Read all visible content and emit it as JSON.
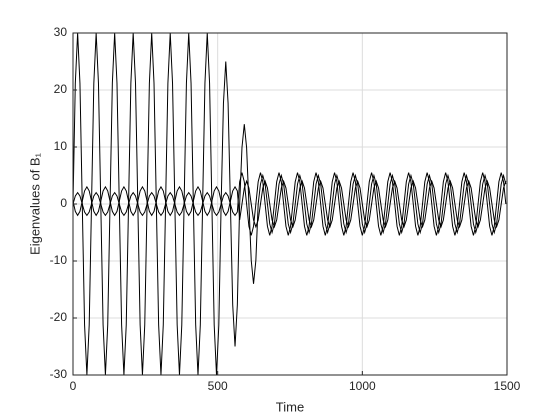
{
  "chart_data": {
    "type": "line",
    "x_label": "Time",
    "y_label": "Eigenvalues of B₁",
    "x": [
      0,
      8,
      16,
      24,
      32,
      40,
      48,
      56,
      64,
      72,
      80,
      88,
      96,
      104,
      112,
      120,
      128,
      136,
      144,
      152,
      160,
      168,
      176,
      184,
      192,
      200,
      208,
      216,
      224,
      232,
      240,
      248,
      256,
      264,
      272,
      280,
      288,
      296,
      304,
      312,
      320,
      328,
      336,
      344,
      352,
      360,
      368,
      376,
      384,
      392,
      400,
      408,
      416,
      424,
      432,
      440,
      448,
      456,
      464,
      472,
      480,
      488,
      496,
      504,
      512,
      520,
      528,
      536,
      544,
      552,
      560,
      568,
      576,
      584,
      592,
      600,
      608,
      616,
      624,
      632,
      640,
      648,
      656,
      664,
      672,
      680,
      688,
      696,
      704,
      712,
      720,
      728,
      736,
      744,
      752,
      760,
      768,
      776,
      784,
      792,
      800,
      808,
      816,
      824,
      832,
      840,
      848,
      856,
      864,
      872,
      880,
      888,
      896,
      904,
      912,
      920,
      928,
      936,
      944,
      952,
      960,
      968,
      976,
      984,
      992,
      1000,
      1008,
      1016,
      1024,
      1032,
      1040,
      1048,
      1056,
      1064,
      1072,
      1080,
      1088,
      1096,
      1104,
      1112,
      1120,
      1128,
      1136,
      1144,
      1152,
      1160,
      1168,
      1176,
      1184,
      1192,
      1200,
      1208,
      1216,
      1224,
      1232,
      1240,
      1248,
      1256,
      1264,
      1272,
      1280,
      1288,
      1296,
      1304,
      1312,
      1320,
      1328,
      1336,
      1344,
      1352,
      1360,
      1368,
      1376,
      1384,
      1392,
      1400,
      1408,
      1416,
      1424,
      1432,
      1440,
      1448,
      1456,
      1464,
      1472,
      1480,
      1488,
      1496
    ],
    "series": [
      {
        "color": "#000000",
        "values": [
          0,
          21.2,
          30,
          21.2,
          0,
          -21.2,
          -30,
          -21.2,
          0,
          21.2,
          30,
          21.2,
          0,
          -21.2,
          -30,
          -21.2,
          0,
          21.2,
          30,
          21.2,
          0,
          -21.2,
          -30,
          -21.2,
          0,
          21.2,
          30,
          21.2,
          0,
          -21.2,
          -30,
          -21.2,
          0,
          21.2,
          30,
          21.2,
          0,
          -21.2,
          -30,
          -21.2,
          0,
          21.2,
          30,
          21.2,
          0,
          -21.2,
          -30,
          -21.2,
          0,
          21.2,
          30,
          21.2,
          0,
          -21.2,
          -30,
          -21.2,
          0,
          21.2,
          30,
          21.2,
          0,
          -21.2,
          -30,
          -21.2,
          0,
          17.7,
          25,
          17.7,
          0,
          -17.7,
          -25,
          -17.7,
          0,
          9.9,
          14,
          9.9,
          0,
          -9.9,
          -14,
          -9.9,
          0,
          3.5,
          5,
          3.5,
          0,
          -3.5,
          -5,
          -3.5,
          0,
          3.5,
          5,
          3.5,
          0,
          -3.5,
          -5,
          -3.5,
          0,
          3.5,
          5,
          3.5,
          0,
          -3.5,
          -5,
          -3.5,
          0,
          3.5,
          5,
          3.5,
          0,
          -3.5,
          -5,
          -3.5,
          0,
          3.5,
          5,
          3.5,
          0,
          -3.5,
          -5,
          -3.5,
          0,
          3.5,
          5,
          3.5,
          0,
          -3.5,
          -5,
          -3.5,
          0,
          3.5,
          5,
          3.5,
          0,
          -3.5,
          -5,
          -3.5,
          0,
          3.5,
          5,
          3.5,
          0,
          -3.5,
          -5,
          -3.5,
          0,
          3.5,
          5,
          3.5,
          0,
          -3.5,
          -5,
          -3.5,
          0,
          3.5,
          5,
          3.5,
          0,
          -3.5,
          -5,
          -3.5,
          0,
          3.5,
          5,
          3.5,
          0,
          -3.5,
          -5,
          -3.5,
          0,
          3.5,
          5,
          3.5,
          0,
          -3.5,
          -5,
          -3.5,
          0,
          3.5,
          5,
          3.5,
          0,
          -3.5,
          -5,
          -3.5,
          0,
          3.5,
          5,
          3.5
        ]
      },
      {
        "color": "#000000",
        "values": [
          0,
          1.4,
          2,
          1.4,
          0,
          -1.4,
          -2,
          -1.4,
          0,
          1.4,
          2,
          1.4,
          0,
          -1.4,
          -2,
          -1.4,
          0,
          1.4,
          2,
          1.4,
          0,
          -1.4,
          -2,
          -1.4,
          0,
          1.4,
          2,
          1.4,
          0,
          -1.4,
          -2,
          -1.4,
          0,
          1.4,
          2,
          1.4,
          0,
          -1.4,
          -2,
          -1.4,
          0,
          1.4,
          2,
          1.4,
          0,
          -1.4,
          -2,
          -1.4,
          0,
          1.4,
          2,
          1.4,
          0,
          -1.4,
          -2,
          -1.4,
          0,
          1.4,
          2,
          1.4,
          0,
          -1.4,
          -2,
          -1.4,
          0,
          1.4,
          2,
          1.4,
          0,
          -1.4,
          -2,
          -1.4,
          3.9,
          5.5,
          3.9,
          0,
          -3.9,
          -5.5,
          -3.9,
          0,
          3.9,
          5.5,
          3.9,
          0,
          -3.9,
          -5.5,
          -3.9,
          0,
          3.9,
          5.5,
          3.9,
          0,
          -3.9,
          -5.5,
          -3.9,
          0,
          3.9,
          5.5,
          3.9,
          0,
          -3.9,
          -5.5,
          -3.9,
          0,
          3.9,
          5.5,
          3.9,
          0,
          -3.9,
          -5.5,
          -3.9,
          0,
          3.9,
          5.5,
          3.9,
          0,
          -3.9,
          -5.5,
          -3.9,
          0,
          3.9,
          5.5,
          3.9,
          0,
          -3.9,
          -5.5,
          -3.9,
          0,
          3.9,
          5.5,
          3.9,
          0,
          -3.9,
          -5.5,
          -3.9,
          0,
          3.9,
          5.5,
          3.9,
          0,
          -3.9,
          -5.5,
          -3.9,
          0,
          3.9,
          5.5,
          3.9,
          0,
          -3.9,
          -5.5,
          -3.9,
          0,
          3.9,
          5.5,
          3.9,
          0,
          -3.9,
          -5.5,
          -3.9,
          0,
          3.9,
          5.5,
          3.9,
          0,
          -3.9,
          -5.5,
          -3.9,
          0,
          3.9,
          5.5,
          3.9,
          0,
          -3.9,
          -5.5,
          -3.9,
          0,
          3.9,
          5.5,
          3.9,
          0,
          -3.9,
          -5.5,
          -3.9,
          0,
          3.9,
          5.5,
          3.9,
          0
        ]
      },
      {
        "color": "#000000",
        "values": [
          0.5,
          -1.3,
          -2,
          -1.3,
          0.5,
          2.3,
          3,
          2.3,
          0.5,
          -1.3,
          -2,
          -1.3,
          0.5,
          2.3,
          3,
          2.3,
          0.5,
          -1.3,
          -2,
          -1.3,
          0.5,
          2.3,
          3,
          2.3,
          0.5,
          -1.3,
          -2,
          -1.3,
          0.5,
          2.3,
          3,
          2.3,
          0.5,
          -1.3,
          -2,
          -1.3,
          0.5,
          2.3,
          3,
          2.3,
          0.5,
          -1.3,
          -2,
          -1.3,
          0.5,
          2.3,
          3,
          2.3,
          0.5,
          -1.3,
          -2,
          -1.3,
          0.5,
          2.3,
          3,
          2.3,
          0.5,
          -1.3,
          -2,
          -1.3,
          0.5,
          2.3,
          3,
          2.3,
          0.5,
          -1.3,
          -2,
          -1.3,
          0.5,
          2.3,
          3,
          2.3,
          -2.8,
          0,
          2.8,
          4,
          2.8,
          0,
          -2.8,
          -4,
          -2.8,
          0,
          2.8,
          4,
          2.8,
          0,
          -2.8,
          -4,
          -2.8,
          0,
          2.8,
          4,
          2.8,
          0,
          -2.8,
          -4,
          -2.8,
          0,
          2.8,
          4,
          2.8,
          0,
          -2.8,
          -4,
          -2.8,
          0,
          2.8,
          4,
          2.8,
          0,
          -2.8,
          -4,
          -2.8,
          0,
          2.8,
          4,
          2.8,
          0,
          -2.8,
          -4,
          -2.8,
          0,
          2.8,
          4,
          2.8,
          0,
          -2.8,
          -4,
          -2.8,
          0,
          2.8,
          4,
          2.8,
          0,
          -2.8,
          -4,
          -2.8,
          0,
          2.8,
          4,
          2.8,
          0,
          -2.8,
          -4,
          -2.8,
          0,
          2.8,
          4,
          2.8,
          0,
          -2.8,
          -4,
          -2.8,
          0,
          2.8,
          4,
          2.8,
          0,
          -2.8,
          -4,
          -2.8,
          0,
          2.8,
          4,
          2.8,
          0,
          -2.8,
          -4,
          -2.8,
          0,
          2.8,
          4,
          2.8,
          0,
          -2.8,
          -4,
          -2.8,
          0,
          2.8,
          4,
          2.8,
          0,
          -2.8,
          -4,
          -2.8,
          0,
          2.8,
          4
        ]
      }
    ],
    "xlim": [
      0,
      1500
    ],
    "xticks": [
      0,
      500,
      1000,
      1500
    ],
    "ylim": [
      -30,
      30
    ],
    "yticks": [
      -30,
      -20,
      -10,
      0,
      10,
      20,
      30
    ],
    "grid": true
  }
}
